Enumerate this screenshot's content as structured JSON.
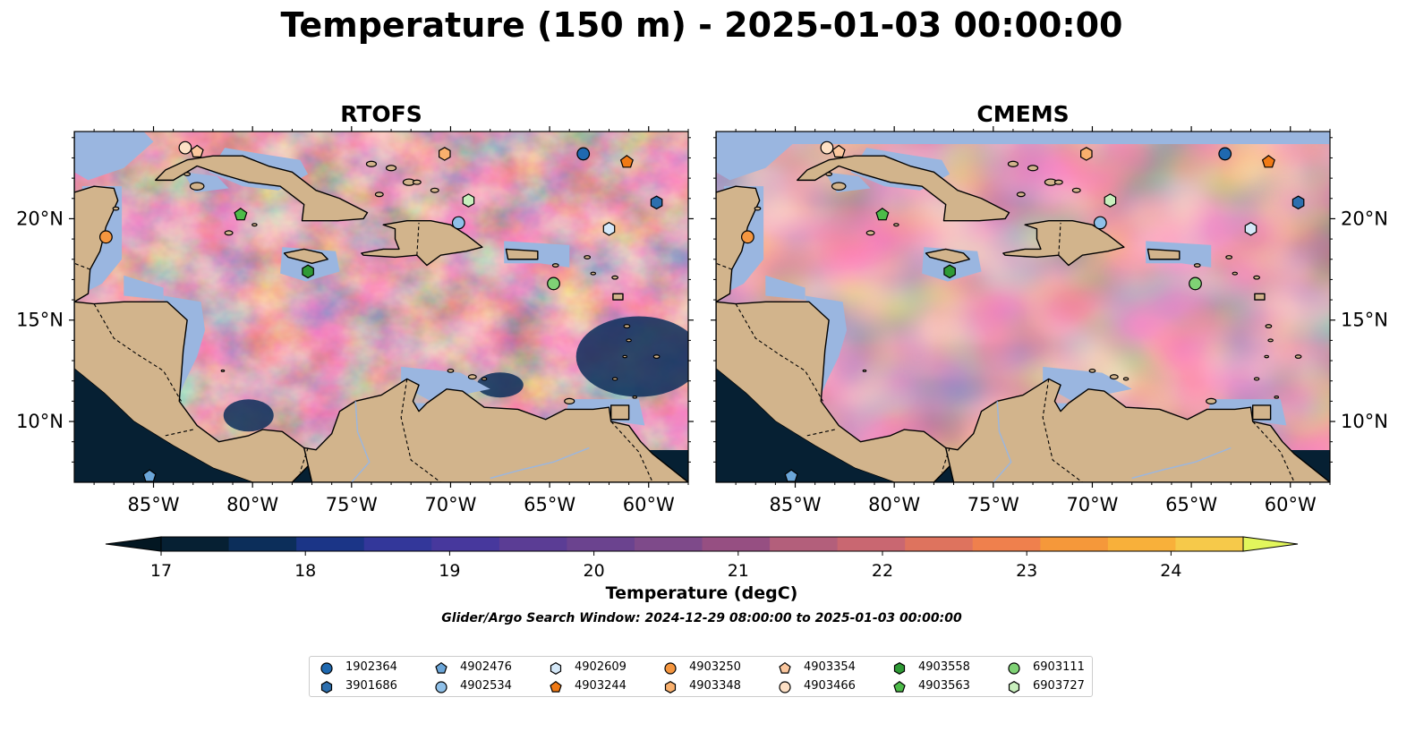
{
  "title": "Temperature (150 m) - 2025-01-03 00:00:00",
  "panels": [
    {
      "title": "RTOFS"
    },
    {
      "title": "CMEMS"
    }
  ],
  "map": {
    "lon_ticks": [
      "85°W",
      "80°W",
      "75°W",
      "70°W",
      "65°W",
      "60°W"
    ],
    "lat_ticks": [
      "20°N",
      "15°N",
      "10°N"
    ],
    "colors": {
      "land": "#d2b48c",
      "shelf": "#9ab6e0",
      "coast": "#000000"
    }
  },
  "colorbar": {
    "label": "Temperature (degC)",
    "ticks": [
      "17",
      "18",
      "19",
      "20",
      "21",
      "22",
      "23",
      "24"
    ],
    "range": [
      17,
      24.5
    ],
    "colors": [
      "#062033",
      "#0c2e5a",
      "#1b3587",
      "#33379a",
      "#47389d",
      "#5b3d95",
      "#6b438f",
      "#7e4a8a",
      "#964f82",
      "#b35f7b",
      "#c96771",
      "#de735e",
      "#ef804d",
      "#f5983a",
      "#f8b03a",
      "#f6c94a"
    ],
    "extend_low": "#031722",
    "extend_high": "#e2f65c"
  },
  "search_window": "Glider/Argo Search Window: 2024-12-29 08:00:00 to 2025-01-03 00:00:00",
  "legend": [
    {
      "id": "1902364",
      "marker": "circle",
      "color": "#1f69b0"
    },
    {
      "id": "3901686",
      "marker": "hexagon",
      "color": "#2d6fae"
    },
    {
      "id": "4902476",
      "marker": "pentagon",
      "color": "#6ba6d9"
    },
    {
      "id": "4902534",
      "marker": "circle",
      "color": "#8fc0e8"
    },
    {
      "id": "4902609",
      "marker": "hexagon",
      "color": "#d4e8f8"
    },
    {
      "id": "4903244",
      "marker": "pentagon",
      "color": "#f07a16"
    },
    {
      "id": "4903250",
      "marker": "circle",
      "color": "#f5963f"
    },
    {
      "id": "4903348",
      "marker": "hexagon",
      "color": "#f9b06d"
    },
    {
      "id": "4903354",
      "marker": "pentagon",
      "color": "#fbc79e"
    },
    {
      "id": "4903466",
      "marker": "circle",
      "color": "#fde0c5"
    },
    {
      "id": "4903558",
      "marker": "hexagon",
      "color": "#2e9a35"
    },
    {
      "id": "4903563",
      "marker": "pentagon",
      "color": "#4dbb49"
    },
    {
      "id": "6903111",
      "marker": "circle",
      "color": "#7fd275"
    },
    {
      "id": "6903727",
      "marker": "hexagon",
      "color": "#c8efbd"
    }
  ],
  "floats": [
    {
      "id": "4903466",
      "marker": "circle",
      "lon": -83.4,
      "lat": 23.5,
      "color": "#fde0c5"
    },
    {
      "id": "4903354",
      "marker": "pentagon",
      "lon": -82.8,
      "lat": 23.3,
      "color": "#fbc79e"
    },
    {
      "id": "4903348",
      "marker": "hexagon",
      "lon": -70.3,
      "lat": 23.2,
      "color": "#f9b06d"
    },
    {
      "id": "1902364",
      "marker": "circle",
      "lon": -63.3,
      "lat": 23.2,
      "color": "#1f69b0"
    },
    {
      "id": "4903244",
      "marker": "pentagon",
      "lon": -61.1,
      "lat": 22.8,
      "color": "#f07a16"
    },
    {
      "id": "6903727",
      "marker": "hexagon",
      "lon": -69.1,
      "lat": 20.9,
      "color": "#c8efbd"
    },
    {
      "id": "3901686",
      "marker": "hexagon",
      "lon": -59.6,
      "lat": 20.8,
      "color": "#2d6fae"
    },
    {
      "id": "4903563",
      "marker": "pentagon",
      "lon": -80.6,
      "lat": 20.2,
      "color": "#4dbb49"
    },
    {
      "id": "4902534",
      "marker": "circle",
      "lon": -69.6,
      "lat": 19.8,
      "color": "#8fc0e8"
    },
    {
      "id": "4902609",
      "marker": "hexagon",
      "lon": -62.0,
      "lat": 19.5,
      "color": "#d4e8f8"
    },
    {
      "id": "4903250",
      "marker": "circle",
      "lon": -87.4,
      "lat": 19.1,
      "color": "#f5963f"
    },
    {
      "id": "4903558",
      "marker": "hexagon",
      "lon": -77.2,
      "lat": 17.4,
      "color": "#2e9a35"
    },
    {
      "id": "6903111",
      "marker": "circle",
      "lon": -64.8,
      "lat": 16.8,
      "color": "#7fd275"
    },
    {
      "id": "4902476",
      "marker": "pentagon",
      "lon": -85.2,
      "lat": 7.3,
      "color": "#6ba6d9"
    }
  ]
}
